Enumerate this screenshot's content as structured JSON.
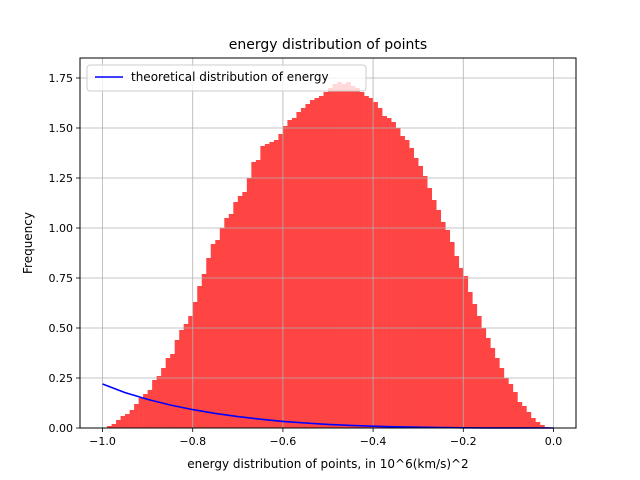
{
  "chart_data": {
    "type": "bar",
    "title": "energy distribution of points",
    "xlabel": "energy distribution of points, in 10^6(km/s)^2",
    "ylabel": "Frequency",
    "xlim": [
      -1.05,
      0.05
    ],
    "ylim": [
      0,
      1.85
    ],
    "x_ticks": [
      -1.0,
      -0.8,
      -0.6,
      -0.4,
      -0.2,
      0.0
    ],
    "x_tick_labels": [
      "−1.0",
      "−0.8",
      "−0.6",
      "−0.4",
      "−0.2",
      "0.0"
    ],
    "y_ticks": [
      0,
      0.25,
      0.5,
      0.75,
      1.0,
      1.25,
      1.5,
      1.75
    ],
    "y_tick_labels": [
      "0.00",
      "0.25",
      "0.50",
      "0.75",
      "1.00",
      "1.25",
      "1.50",
      "1.75"
    ],
    "grid": true,
    "legend": {
      "position": "top-left",
      "entries": [
        {
          "label": "theoretical distribution of energy",
          "color": "#0000ff"
        }
      ]
    },
    "histogram": {
      "color": "#ff4444",
      "bin_start": -1.0,
      "bin_width": 0.01,
      "values": [
        0.0,
        0.01,
        0.02,
        0.04,
        0.06,
        0.07,
        0.09,
        0.12,
        0.15,
        0.17,
        0.19,
        0.24,
        0.26,
        0.3,
        0.35,
        0.37,
        0.44,
        0.49,
        0.52,
        0.56,
        0.63,
        0.71,
        0.77,
        0.85,
        0.92,
        0.94,
        1.0,
        1.05,
        1.07,
        1.13,
        1.16,
        1.18,
        1.25,
        1.33,
        1.34,
        1.41,
        1.42,
        1.43,
        1.44,
        1.47,
        1.51,
        1.54,
        1.55,
        1.58,
        1.6,
        1.62,
        1.64,
        1.65,
        1.66,
        1.68,
        1.7,
        1.72,
        1.73,
        1.72,
        1.73,
        1.71,
        1.7,
        1.68,
        1.66,
        1.65,
        1.63,
        1.6,
        1.56,
        1.55,
        1.53,
        1.5,
        1.46,
        1.44,
        1.4,
        1.35,
        1.31,
        1.26,
        1.2,
        1.14,
        1.09,
        1.03,
        0.99,
        0.93,
        0.86,
        0.8,
        0.76,
        0.68,
        0.62,
        0.56,
        0.5,
        0.45,
        0.4,
        0.35,
        0.3,
        0.25,
        0.22,
        0.18,
        0.13,
        0.11,
        0.08,
        0.05,
        0.03,
        0.015,
        0.005,
        0.0
      ]
    },
    "series": [
      {
        "type": "line",
        "color": "#0000ff",
        "x": [
          -1.0,
          -0.95,
          -0.9,
          -0.85,
          -0.8,
          -0.75,
          -0.7,
          -0.65,
          -0.6,
          -0.55,
          -0.5,
          -0.45,
          -0.4,
          -0.35,
          -0.3,
          -0.25,
          -0.2,
          -0.15,
          -0.1,
          -0.05,
          0.0
        ],
        "y": [
          0.22,
          0.177,
          0.143,
          0.115,
          0.092,
          0.073,
          0.057,
          0.044,
          0.033,
          0.025,
          0.018,
          0.013,
          0.009,
          0.006,
          0.004,
          0.002,
          0.001,
          0.0005,
          0.0002,
          0.0001,
          0.0
        ]
      }
    ]
  }
}
